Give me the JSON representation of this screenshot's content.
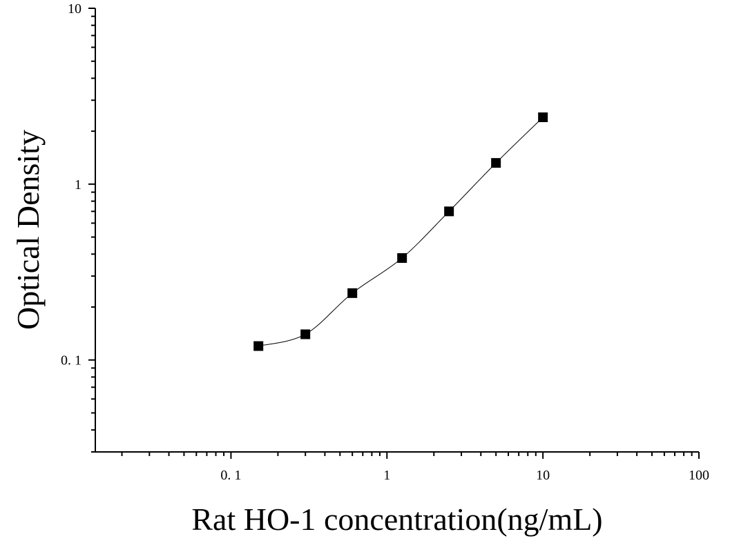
{
  "chart_data": {
    "type": "scatter",
    "title": "",
    "xlabel": "Rat HO-1 concentration(ng/mL)",
    "ylabel": "Optical Density",
    "xscale": "log",
    "yscale": "log",
    "xlim": [
      0.0135,
      100
    ],
    "ylim": [
      0.03,
      10
    ],
    "grid": false,
    "legend": "none",
    "x_tick_labels": [
      {
        "value": 0.1,
        "label": "0. 1"
      },
      {
        "value": 1,
        "label": "1"
      },
      {
        "value": 10,
        "label": "10"
      },
      {
        "value": 100,
        "label": "100"
      }
    ],
    "y_tick_labels": [
      {
        "value": 0.1,
        "label": "0. 1"
      },
      {
        "value": 1,
        "label": "1"
      },
      {
        "value": 10,
        "label": "10"
      }
    ],
    "series": [
      {
        "marker": "square",
        "color": "#000000",
        "x": [
          0.15,
          0.3,
          0.6,
          1.25,
          2.5,
          5,
          10
        ],
        "y": [
          0.12,
          0.14,
          0.24,
          0.38,
          0.7,
          1.32,
          2.4
        ]
      }
    ],
    "fit": {
      "kind": "smooth-curve",
      "color": "#000000",
      "x_range": [
        0.15,
        10
      ]
    }
  }
}
